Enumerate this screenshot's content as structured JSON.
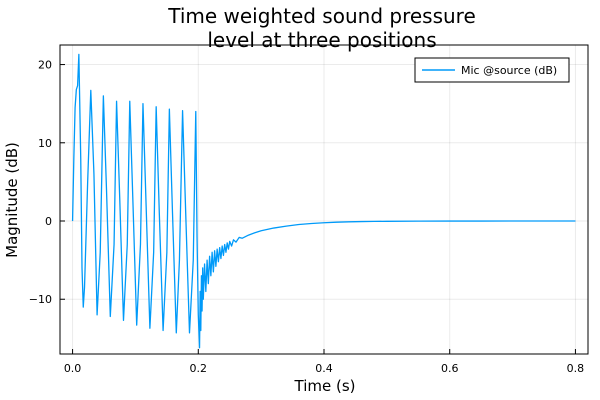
{
  "chart_data": {
    "type": "line",
    "title_lines": [
      "Time weighted sound pressure",
      "level at three positions"
    ],
    "xlabel": "Time (s)",
    "ylabel": "Magnitude (dB)",
    "xlim": [
      -0.02,
      0.82
    ],
    "ylim": [
      -17,
      22.5
    ],
    "xticks": [
      0.0,
      0.2,
      0.4,
      0.6,
      0.8
    ],
    "xtick_labels": [
      "0.0",
      "0.2",
      "0.4",
      "0.6",
      "0.8"
    ],
    "yticks": [
      -10,
      0,
      10,
      20
    ],
    "ytick_labels": [
      "−10",
      "0",
      "10",
      "20"
    ],
    "grid": true,
    "legend_position": "top-right",
    "series": [
      {
        "name": "Mic @source (dB)",
        "color": "#009af9",
        "points": [
          [
            0.0,
            0.0
          ],
          [
            0.002,
            8.0
          ],
          [
            0.004,
            14.5
          ],
          [
            0.006,
            16.8
          ],
          [
            0.008,
            17.3
          ],
          [
            0.01,
            21.3
          ],
          [
            0.013,
            8.0
          ],
          [
            0.015,
            -6.0
          ],
          [
            0.017,
            -11.0
          ],
          [
            0.019,
            -8.5
          ],
          [
            0.024,
            5.0
          ],
          [
            0.029,
            16.7
          ],
          [
            0.034,
            6.0
          ],
          [
            0.039,
            -12.0
          ],
          [
            0.044,
            -4.0
          ],
          [
            0.049,
            16.0
          ],
          [
            0.054,
            4.0
          ],
          [
            0.06,
            -12.2
          ],
          [
            0.066,
            -3.0
          ],
          [
            0.07,
            15.3
          ],
          [
            0.075,
            3.0
          ],
          [
            0.081,
            -12.7
          ],
          [
            0.087,
            -3.0
          ],
          [
            0.091,
            15.3
          ],
          [
            0.096,
            2.5
          ],
          [
            0.102,
            -13.3
          ],
          [
            0.108,
            -3.0
          ],
          [
            0.112,
            15.0
          ],
          [
            0.117,
            2.0
          ],
          [
            0.123,
            -13.7
          ],
          [
            0.129,
            -4.0
          ],
          [
            0.133,
            14.6
          ],
          [
            0.138,
            1.0
          ],
          [
            0.144,
            -14.0
          ],
          [
            0.15,
            -4.0
          ],
          [
            0.154,
            14.3
          ],
          [
            0.159,
            1.0
          ],
          [
            0.165,
            -14.3
          ],
          [
            0.17,
            -5.0
          ],
          [
            0.175,
            14.1
          ],
          [
            0.18,
            1.0
          ],
          [
            0.186,
            -14.3
          ],
          [
            0.192,
            -5.0
          ],
          [
            0.196,
            14.0
          ],
          [
            0.197,
            6.0
          ],
          [
            0.198,
            -2.0
          ],
          [
            0.2,
            -12.0
          ],
          [
            0.202,
            -16.2
          ],
          [
            0.203,
            -9.0
          ],
          [
            0.204,
            -14.0
          ],
          [
            0.205,
            -7.0
          ],
          [
            0.206,
            -11.5
          ],
          [
            0.207,
            -6.0
          ],
          [
            0.208,
            -10.0
          ],
          [
            0.21,
            -5.5
          ],
          [
            0.212,
            -9.0
          ],
          [
            0.214,
            -5.0
          ],
          [
            0.216,
            -8.0
          ],
          [
            0.218,
            -4.5
          ],
          [
            0.22,
            -7.0
          ],
          [
            0.222,
            -4.0
          ],
          [
            0.224,
            -6.5
          ],
          [
            0.226,
            -3.8
          ],
          [
            0.228,
            -5.8
          ],
          [
            0.23,
            -3.6
          ],
          [
            0.232,
            -5.2
          ],
          [
            0.234,
            -3.4
          ],
          [
            0.236,
            -4.8
          ],
          [
            0.238,
            -3.2
          ],
          [
            0.24,
            -4.4
          ],
          [
            0.242,
            -3.0
          ],
          [
            0.244,
            -4.0
          ],
          [
            0.246,
            -2.8
          ],
          [
            0.248,
            -3.6
          ],
          [
            0.25,
            -2.6
          ],
          [
            0.253,
            -3.2
          ],
          [
            0.256,
            -2.4
          ],
          [
            0.26,
            -2.7
          ],
          [
            0.265,
            -2.1
          ],
          [
            0.27,
            -2.2
          ],
          [
            0.28,
            -1.8
          ],
          [
            0.29,
            -1.5
          ],
          [
            0.3,
            -1.25
          ],
          [
            0.32,
            -0.9
          ],
          [
            0.34,
            -0.65
          ],
          [
            0.36,
            -0.45
          ],
          [
            0.38,
            -0.32
          ],
          [
            0.4,
            -0.22
          ],
          [
            0.42,
            -0.15
          ],
          [
            0.44,
            -0.1
          ],
          [
            0.46,
            -0.07
          ],
          [
            0.48,
            -0.05
          ],
          [
            0.5,
            -0.035
          ],
          [
            0.55,
            -0.015
          ],
          [
            0.6,
            -0.006
          ],
          [
            0.65,
            -0.003
          ],
          [
            0.7,
            -0.001
          ],
          [
            0.75,
            0.0
          ],
          [
            0.8,
            0.0
          ]
        ]
      }
    ]
  }
}
